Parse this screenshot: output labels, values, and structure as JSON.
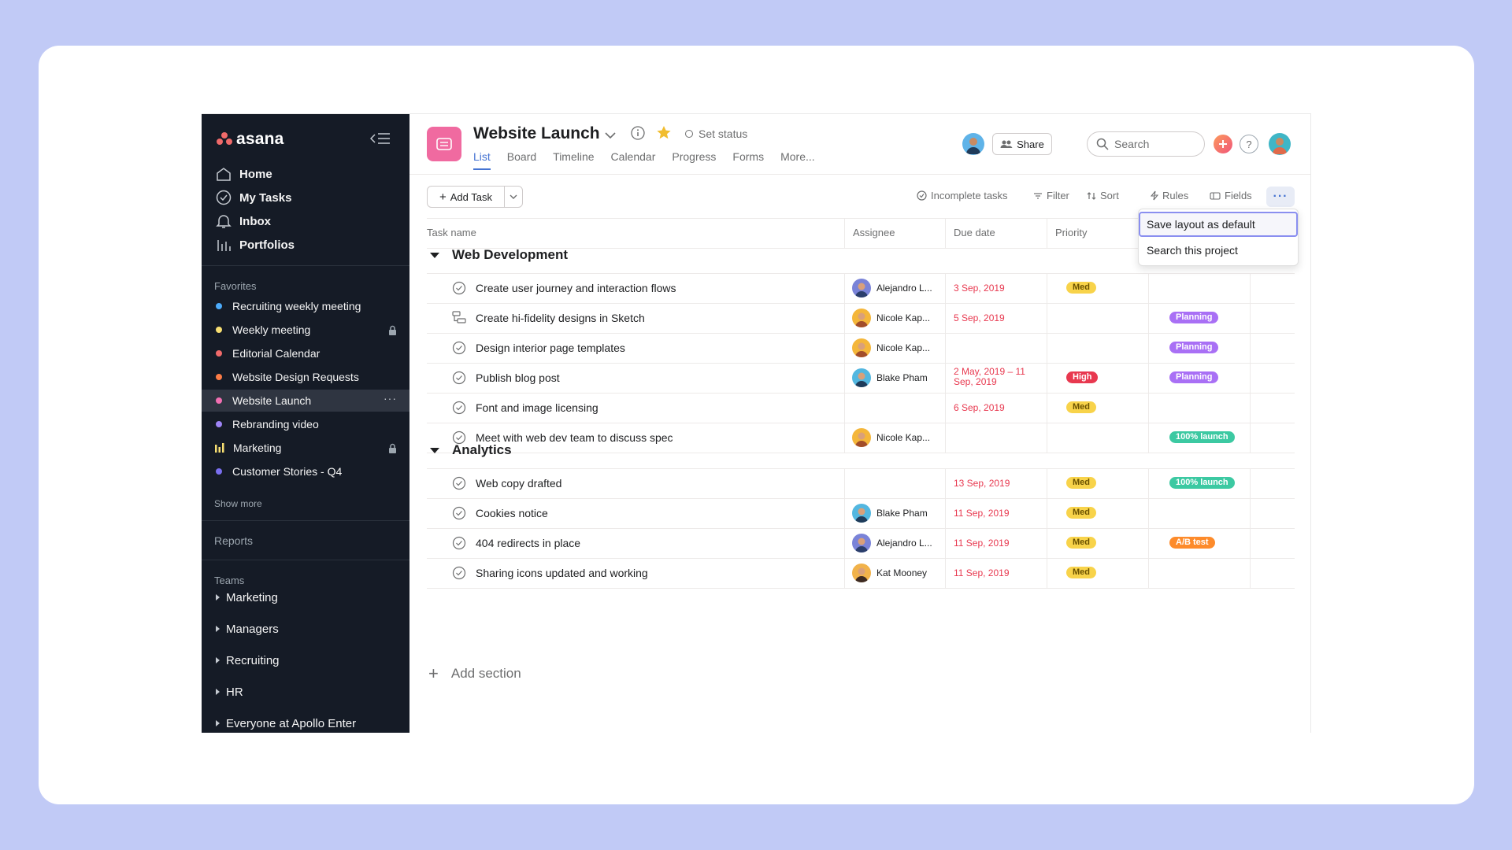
{
  "sidebar": {
    "logo": "asana",
    "nav": [
      {
        "label": "Home",
        "icon": "home-icon"
      },
      {
        "label": "My Tasks",
        "icon": "check-circle-icon"
      },
      {
        "label": "Inbox",
        "icon": "bell-icon"
      },
      {
        "label": "Portfolios",
        "icon": "bar-chart-icon"
      }
    ],
    "favorites_label": "Favorites",
    "favorites": [
      {
        "label": "Recruiting weekly meeting",
        "color": "#4cabfa"
      },
      {
        "label": "Weekly meeting",
        "color": "#f8df72",
        "locked": true
      },
      {
        "label": "Editorial Calendar",
        "color": "#f06a6a"
      },
      {
        "label": "Website Design Requests",
        "color": "#fc7c46"
      },
      {
        "label": "Website Launch",
        "color": "#f26fb2",
        "active": true
      },
      {
        "label": "Rebranding video",
        "color": "#9e84f6"
      },
      {
        "label": "Marketing",
        "color": "#f8df72",
        "locked": true,
        "icon": "bars"
      },
      {
        "label": "Customer Stories - Q4",
        "color": "#7a6ff0"
      }
    ],
    "show_more": "Show more",
    "reports_label": "Reports",
    "teams_label": "Teams",
    "teams": [
      "Marketing",
      "Managers",
      "Recruiting",
      "HR",
      "Everyone at Apollo Enter"
    ]
  },
  "header": {
    "project_title": "Website Launch",
    "set_status": "Set status",
    "tabs": [
      "List",
      "Board",
      "Timeline",
      "Calendar",
      "Progress",
      "Forms",
      "More..."
    ],
    "active_tab": "List",
    "share_label": "Share",
    "search_placeholder": "Search"
  },
  "toolbar": {
    "add_task": "Add Task",
    "incomplete": "Incomplete tasks",
    "filter": "Filter",
    "sort": "Sort",
    "rules": "Rules",
    "fields": "Fields",
    "more": "···",
    "menu": [
      "Save layout as default",
      "Search this project"
    ]
  },
  "columns": [
    "Task name",
    "Assignee",
    "Due date",
    "Priority"
  ],
  "sections": [
    {
      "title": "Web Development",
      "tasks": [
        {
          "name": "Create user journey and interaction flows",
          "assignee": "Alejandro L...",
          "due": "3 Sep, 2019",
          "priority": "Med",
          "tag": ""
        },
        {
          "name": "Create hi-fidelity designs in Sketch",
          "assignee": "Nicole Kap...",
          "due": "5 Sep, 2019",
          "priority": "",
          "tag": "Planning",
          "icon": "subtask"
        },
        {
          "name": "Design interior page templates",
          "assignee": "Nicole Kap...",
          "due": "",
          "priority": "",
          "tag": "Planning"
        },
        {
          "name": "Publish blog post",
          "assignee": "Blake Pham",
          "due": "2 May, 2019 – 11 Sep, 2019",
          "priority": "High",
          "tag": "Planning"
        },
        {
          "name": "Font and image licensing",
          "assignee": "",
          "due": "6 Sep, 2019",
          "priority": "Med",
          "tag": ""
        },
        {
          "name": "Meet with web dev team to discuss spec",
          "assignee": "Nicole Kap...",
          "due": "",
          "priority": "",
          "tag": "100% launch"
        }
      ]
    },
    {
      "title": "Analytics",
      "tasks": [
        {
          "name": "Web copy drafted",
          "assignee": "",
          "due": "13 Sep, 2019",
          "priority": "Med",
          "tag": "100% launch"
        },
        {
          "name": "Cookies notice",
          "assignee": "Blake Pham",
          "due": "11 Sep, 2019",
          "priority": "Med",
          "tag": ""
        },
        {
          "name": "404 redirects in place",
          "assignee": "Alejandro L...",
          "due": "11 Sep, 2019",
          "priority": "Med",
          "tag": "A/B test"
        },
        {
          "name": "Sharing icons updated and working",
          "assignee": "Kat Mooney",
          "due": "11 Sep, 2019",
          "priority": "Med",
          "tag": ""
        }
      ]
    }
  ],
  "add_section": "Add section",
  "colors": {
    "med": "#f8d34a",
    "high": "#e8384f",
    "planning": "#a970f5",
    "launch": "#3cc9a2",
    "abtest": "#fd8b2b",
    "accent": "#4573d2"
  }
}
